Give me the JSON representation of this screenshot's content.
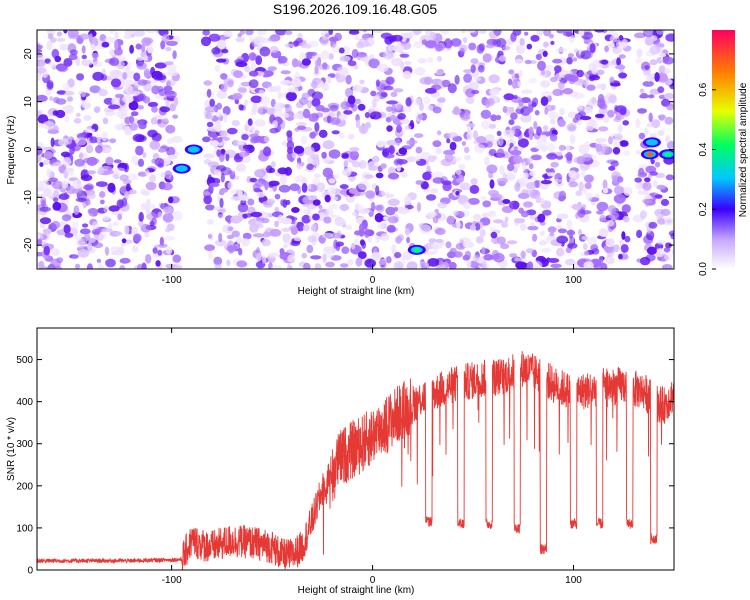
{
  "title": "S196.2026.109.16.48.G05",
  "chart_data": [
    {
      "type": "heatmap",
      "name": "spectrogram",
      "xlabel": "Height of straight line (km)",
      "ylabel": "Frequency (Hz)",
      "xlim": [
        -167,
        150
      ],
      "ylim": [
        -25,
        25
      ],
      "xticks": [
        -100,
        0,
        100
      ],
      "yticks": [
        -20,
        -10,
        0,
        10,
        20
      ],
      "gaps": [
        [
          -97,
          -83
        ],
        [
          20,
          22
        ],
        [
          95,
          97
        ],
        [
          127,
          132
        ]
      ],
      "hotspots": [
        {
          "x": -95,
          "y": -4,
          "amp": 0.35
        },
        {
          "x": -89,
          "y": 0,
          "amp": 0.4
        },
        {
          "x": 22,
          "y": -21,
          "amp": 0.45
        },
        {
          "x": 138,
          "y": -1,
          "amp": 0.65
        },
        {
          "x": 147,
          "y": -1,
          "amp": 0.55
        },
        {
          "x": 139,
          "y": 1.5,
          "amp": 0.35
        }
      ],
      "colorbar": {
        "label": "Normalized spectral amplitude",
        "range": [
          0,
          0.8
        ],
        "ticks": [
          "0.0",
          "0.2",
          "0.4",
          "0.6"
        ]
      }
    },
    {
      "type": "line",
      "name": "snr",
      "xlabel": "Height of straight line (km)",
      "ylabel": "SNR (10 * v/v)",
      "xlim": [
        -167,
        150
      ],
      "ylim": [
        0,
        575
      ],
      "xticks": [
        -100,
        0,
        100
      ],
      "yticks": [
        0,
        100,
        200,
        300,
        400,
        500
      ],
      "color": "#e53935",
      "series": [
        {
          "name": "SNR",
          "x": [
            -167,
            -150,
            -120,
            -95,
            -90,
            -85,
            -80,
            -70,
            -60,
            -50,
            -45,
            -40,
            -35,
            -30,
            -25,
            -20,
            -15,
            -10,
            -5,
            0,
            5,
            10,
            15,
            20,
            25,
            30,
            35,
            40,
            45,
            50,
            55,
            60,
            65,
            70,
            75,
            80,
            85,
            90,
            95,
            100,
            105,
            110,
            115,
            120,
            125,
            130,
            135,
            140,
            145,
            150
          ],
          "y": [
            22,
            22,
            22,
            25,
            70,
            60,
            55,
            70,
            65,
            55,
            35,
            35,
            55,
            120,
            190,
            240,
            270,
            285,
            300,
            320,
            340,
            360,
            380,
            395,
            410,
            420,
            430,
            440,
            445,
            450,
            455,
            460,
            460,
            470,
            480,
            470,
            460,
            440,
            430,
            420,
            425,
            430,
            440,
            435,
            440,
            430,
            425,
            400,
            390,
            420
          ]
        },
        {
          "name": "SNR-dips",
          "x": [
            28,
            44,
            58,
            72,
            85,
            100,
            113,
            128,
            140
          ],
          "y": [
            115,
            110,
            110,
            100,
            50,
            110,
            110,
            110,
            75
          ]
        }
      ]
    }
  ]
}
